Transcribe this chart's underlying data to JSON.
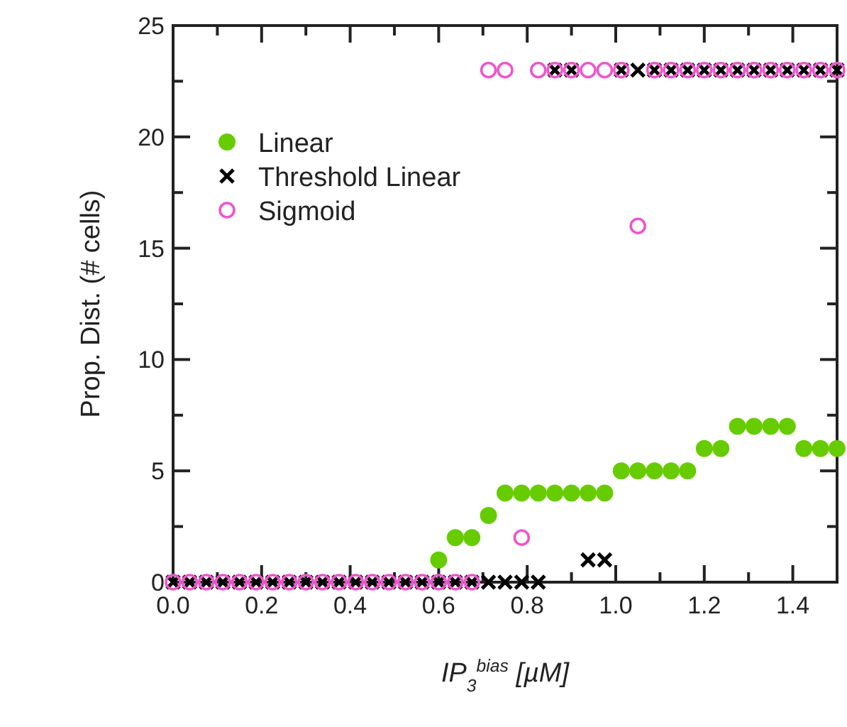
{
  "chart_data": {
    "type": "scatter",
    "xlabel": "IP$_{3}$$^{bias}$ [µM]",
    "ylabel": "Prop. Dist. (# cells)",
    "x": [
      0,
      0.0375,
      0.075,
      0.1125,
      0.15,
      0.1875,
      0.225,
      0.2625,
      0.3,
      0.3375,
      0.375,
      0.4125,
      0.45,
      0.4875,
      0.525,
      0.5625,
      0.6,
      0.6375,
      0.675,
      0.7125,
      0.75,
      0.7875,
      0.825,
      0.8625,
      0.9,
      0.9375,
      0.975,
      1.0125,
      1.05,
      1.0875,
      1.125,
      1.1625,
      1.2,
      1.2375,
      1.275,
      1.3125,
      1.35,
      1.3875,
      1.425,
      1.4625,
      1.5
    ],
    "series": [
      {
        "name": "Linear",
        "color": "#66cc00",
        "marker": "circle",
        "values": [
          null,
          null,
          null,
          null,
          null,
          null,
          null,
          null,
          null,
          null,
          null,
          null,
          null,
          null,
          null,
          null,
          1,
          2,
          2,
          3,
          4,
          4,
          4,
          4,
          4,
          4,
          4,
          5,
          5,
          5,
          5,
          5,
          6,
          6,
          7,
          7,
          7,
          7,
          6,
          6,
          6
        ]
      },
      {
        "name": "Threshold Linear",
        "color": "#000000",
        "marker": "cross",
        "values": [
          0,
          0,
          0,
          0,
          0,
          0,
          0,
          0,
          0,
          0,
          0,
          0,
          0,
          0,
          0,
          0,
          0,
          0,
          0,
          0,
          0,
          0,
          0,
          23,
          23,
          1,
          1,
          23,
          23,
          23,
          23,
          23,
          23,
          23,
          23,
          23,
          23,
          23,
          23,
          23,
          23
        ]
      },
      {
        "name": "Sigmoid",
        "color": "#ee55cc",
        "marker": "circle_open",
        "values": [
          0,
          0,
          0,
          0,
          0,
          0,
          0,
          0,
          0,
          0,
          0,
          0,
          0,
          0,
          0,
          0,
          0,
          0,
          0,
          23,
          23,
          2,
          23,
          23,
          23,
          23,
          23,
          23,
          16,
          23,
          23,
          23,
          23,
          23,
          23,
          23,
          23,
          23,
          23,
          23,
          23
        ]
      }
    ],
    "xlim": [
      0,
      1.5
    ],
    "xticks": [
      {
        "value": 0,
        "label": "0.0"
      },
      {
        "value": 0.1,
        "label": null
      },
      {
        "value": 0.2,
        "label": "0.2"
      },
      {
        "value": 0.3,
        "label": null
      },
      {
        "value": 0.4,
        "label": "0.4"
      },
      {
        "value": 0.5,
        "label": null
      },
      {
        "value": 0.6,
        "label": "0.6"
      },
      {
        "value": 0.7,
        "label": null
      },
      {
        "value": 0.8,
        "label": "0.8"
      },
      {
        "value": 0.9,
        "label": null
      },
      {
        "value": 1,
        "label": "1.0"
      },
      {
        "value": 1.1,
        "label": null
      },
      {
        "value": 1.2,
        "label": "1.2"
      },
      {
        "value": 1.3,
        "label": null
      },
      {
        "value": 1.4,
        "label": "1.4"
      }
    ],
    "ylim": [
      0,
      25
    ],
    "yticks": [
      0,
      {
        "value": 2.5,
        "label": null
      },
      5,
      {
        "value": 7.5,
        "label": null
      },
      10,
      {
        "value": 12.5,
        "label": null
      },
      15,
      {
        "value": 17.5,
        "label": null
      },
      20,
      {
        "value": 22.5,
        "label": null
      },
      25
    ],
    "legend": "top left",
    "grid": false
  }
}
